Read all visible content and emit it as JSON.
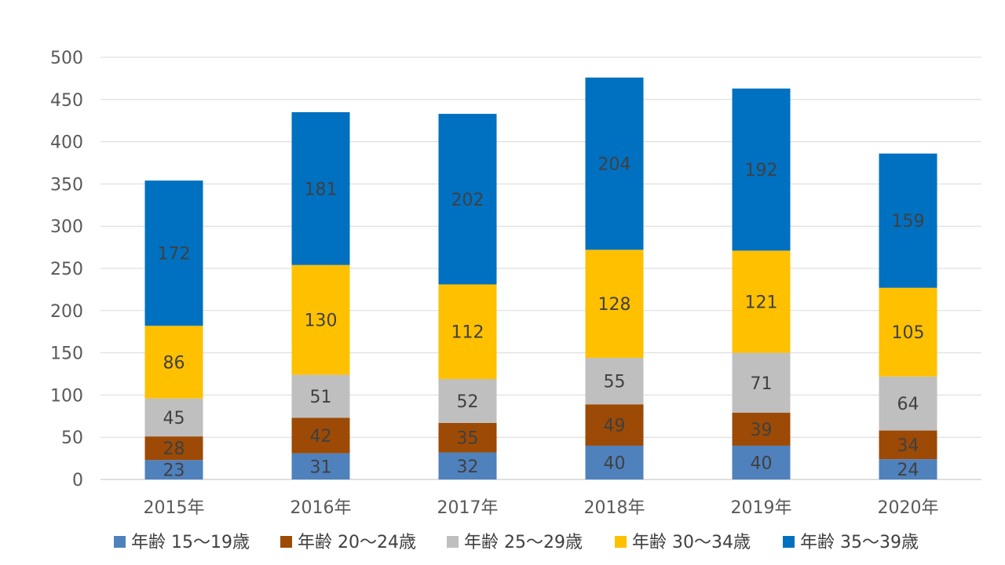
{
  "chart_data": {
    "type": "bar",
    "stacked": true,
    "title": "",
    "xlabel": "",
    "ylabel": "",
    "ylim": [
      0,
      500
    ],
    "yticks": [
      0,
      50,
      100,
      150,
      200,
      250,
      300,
      350,
      400,
      450,
      500
    ],
    "grid": true,
    "legend_position": "bottom",
    "categories": [
      "2015年",
      "2016年",
      "2017年",
      "2018年",
      "2019年",
      "2020年"
    ],
    "series": [
      {
        "name": "年齢 15～19歳",
        "color": "#4f81bd",
        "label_color": "#404040",
        "values": [
          23,
          31,
          32,
          40,
          40,
          24
        ]
      },
      {
        "name": "年齢 20～24歳",
        "color": "#9c4a06",
        "label_color": "#404040",
        "values": [
          28,
          42,
          35,
          49,
          39,
          34
        ]
      },
      {
        "name": "年齢 25～29歳",
        "color": "#bfbfbf",
        "label_color": "#404040",
        "values": [
          45,
          51,
          52,
          55,
          71,
          64
        ]
      },
      {
        "name": "年齢 30～34歳",
        "color": "#ffc000",
        "label_color": "#404040",
        "values": [
          86,
          130,
          112,
          128,
          121,
          105
        ]
      },
      {
        "name": "年齢 35～39歳",
        "color": "#0070c0",
        "label_color": "#404040",
        "values": [
          172,
          181,
          202,
          204,
          192,
          159
        ]
      }
    ]
  }
}
